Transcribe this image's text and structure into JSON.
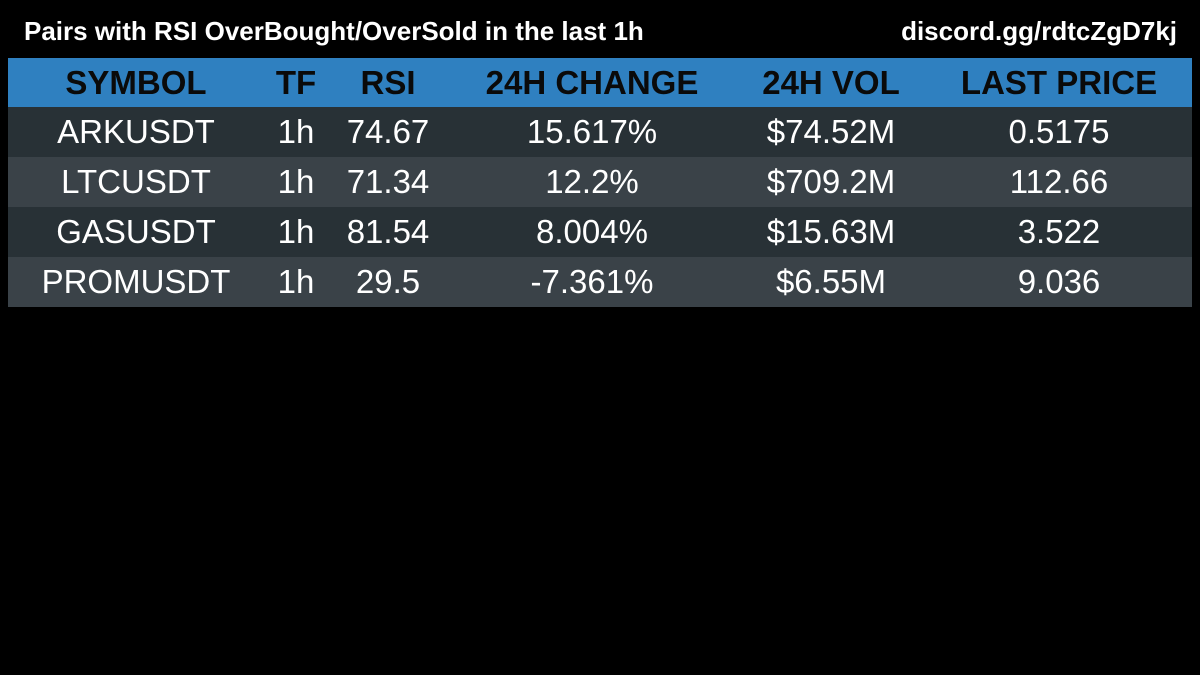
{
  "header": {
    "title": "Pairs with RSI OverBought/OverSold in the last 1h",
    "link": "discord.gg/rdtcZgD7kj"
  },
  "colors": {
    "header_bg": "#2f80c0",
    "row_odd": "#283136",
    "row_even": "#3a4248",
    "background": "#000000"
  },
  "chart_data": {
    "type": "table",
    "columns": [
      "SYMBOL",
      "TF",
      "RSI",
      "24H CHANGE",
      "24H VOL",
      "LAST PRICE"
    ],
    "rows": [
      [
        "ARKUSDT",
        "1h",
        "74.67",
        "15.617%",
        "$74.52M",
        "0.5175"
      ],
      [
        "LTCUSDT",
        "1h",
        "71.34",
        "12.2%",
        "$709.2M",
        "112.66"
      ],
      [
        "GASUSDT",
        "1h",
        "81.54",
        "8.004%",
        "$15.63M",
        "3.522"
      ],
      [
        "PROMUSDT",
        "1h",
        "29.5",
        "-7.361%",
        "$6.55M",
        "9.036"
      ]
    ]
  }
}
